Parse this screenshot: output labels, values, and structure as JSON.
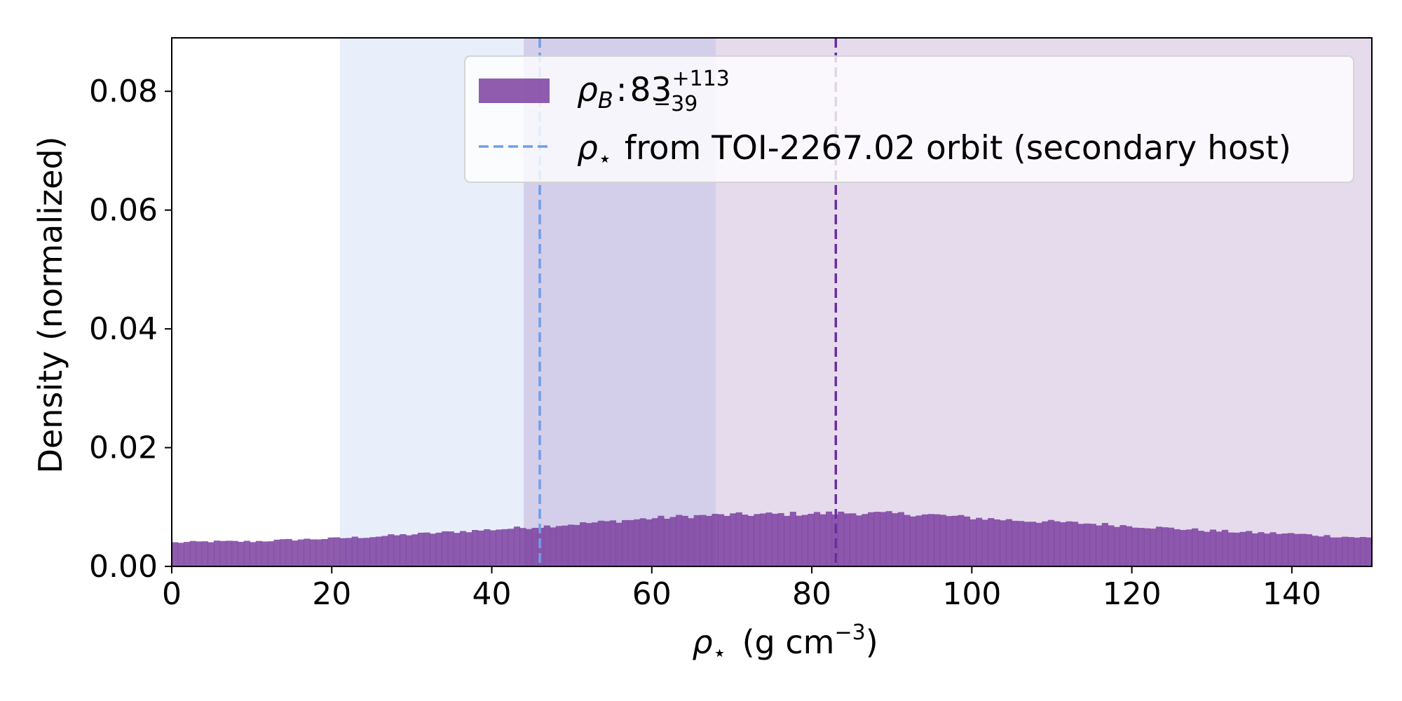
{
  "chart_data": {
    "type": "bar",
    "subtype": "histogram",
    "xlabel": {
      "symbol": "ρ",
      "symbol_sub": "⋆",
      "unit": "(g cm",
      "unit_sup": "−3",
      "unit_close": ")"
    },
    "ylabel": "Density (normalized)",
    "xlim": [
      0,
      150
    ],
    "ylim": [
      0,
      0.089
    ],
    "x_ticks": [
      0,
      20,
      40,
      60,
      80,
      100,
      120,
      140
    ],
    "x_tick_labels": [
      "0",
      "20",
      "40",
      "60",
      "80",
      "100",
      "120",
      "140"
    ],
    "y_ticks": [
      0.0,
      0.02,
      0.04,
      0.06,
      0.08
    ],
    "y_tick_labels": [
      "0.00",
      "0.02",
      "0.04",
      "0.06",
      "0.08"
    ],
    "bin_width": 0.75,
    "density_profile": {
      "x": [
        0,
        5,
        10,
        15,
        20,
        25,
        30,
        35,
        40,
        45,
        50,
        55,
        60,
        65,
        70,
        75,
        80,
        85,
        90,
        95,
        100,
        105,
        110,
        115,
        120,
        125,
        130,
        135,
        140,
        145,
        150
      ],
      "y": [
        0.004,
        0.0042,
        0.0042,
        0.0045,
        0.0047,
        0.005,
        0.0054,
        0.0058,
        0.0062,
        0.0066,
        0.0071,
        0.0076,
        0.0081,
        0.0085,
        0.0087,
        0.0088,
        0.0089,
        0.009,
        0.0089,
        0.0087,
        0.0082,
        0.0078,
        0.0075,
        0.0072,
        0.0068,
        0.0064,
        0.006,
        0.0057,
        0.0055,
        0.0051,
        0.0048
      ]
    },
    "series": [
      {
        "name": "ρB",
        "color": "#7b3fa0",
        "median": 83,
        "upper_err": 113,
        "lower_err": 39,
        "interval": [
          44,
          150
        ]
      },
      {
        "name": "ρ⋆ from TOI-2267.02 orbit (secondary host)",
        "color": "#6f9ee8",
        "value": 46,
        "interval": [
          21,
          68
        ]
      }
    ],
    "legend": {
      "placement": "top-right",
      "entry1": {
        "symbol": "ρ",
        "sub": "B",
        "colon": ":",
        "value": "83",
        "sup": "+113",
        "subscript": "−39"
      },
      "entry2": {
        "symbol": "ρ",
        "sub": "⋆",
        "text": "from TOI-2267.02 orbit (secondary host)"
      }
    },
    "grid": false
  }
}
